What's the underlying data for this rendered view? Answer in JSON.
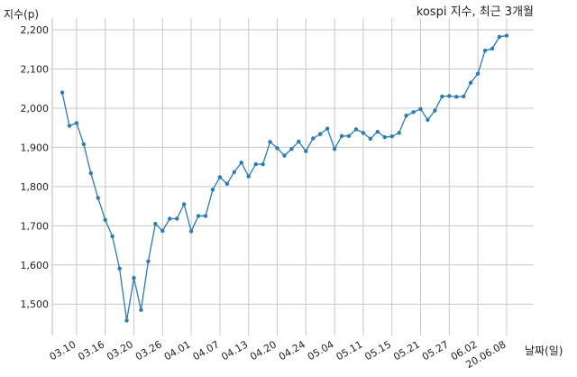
{
  "chart_data": {
    "type": "line",
    "title": "kospi 지수, 최근 3개월",
    "ylabel": "지수(p)",
    "xlabel": "날짜(일)",
    "ylim": [
      1420,
      2230
    ],
    "yticks": [
      1500,
      1600,
      1700,
      1800,
      1900,
      2000,
      2100,
      2200
    ],
    "ytick_labels": [
      "1,500",
      "1,600",
      "1,700",
      "1,800",
      "1,900",
      "2,000",
      "2,100",
      "2,200"
    ],
    "xticks": [
      {
        "index": 2,
        "label": "03.10"
      },
      {
        "index": 6,
        "label": "03.16"
      },
      {
        "index": 10,
        "label": "03.20"
      },
      {
        "index": 14,
        "label": "03.26"
      },
      {
        "index": 18,
        "label": "04.01"
      },
      {
        "index": 22,
        "label": "04.07"
      },
      {
        "index": 26,
        "label": "04.13"
      },
      {
        "index": 30,
        "label": "04.20"
      },
      {
        "index": 34,
        "label": "04.24"
      },
      {
        "index": 38,
        "label": "05.04"
      },
      {
        "index": 42,
        "label": "05.11"
      },
      {
        "index": 46,
        "label": "05.15"
      },
      {
        "index": 50,
        "label": "05.21"
      },
      {
        "index": 54,
        "label": "05.27"
      },
      {
        "index": 58,
        "label": "06.02"
      },
      {
        "index": 62,
        "label": "20.06.08"
      }
    ],
    "grid": true,
    "series": [
      {
        "color": "#2b7bb4",
        "values": [
          2040,
          1955,
          1962,
          1908,
          1834,
          1771,
          1715,
          1673,
          1591,
          1458,
          1567,
          1485,
          1609,
          1705,
          1687,
          1718,
          1718,
          1755,
          1686,
          1725,
          1725,
          1792,
          1824,
          1807,
          1837,
          1861,
          1826,
          1857,
          1857,
          1914,
          1898,
          1879,
          1896,
          1915,
          1890,
          1923,
          1934,
          1948,
          1896,
          1929,
          1929,
          1946,
          1937,
          1922,
          1940,
          1926,
          1928,
          1937,
          1981,
          1990,
          1998,
          1970,
          1994,
          2030,
          2031,
          2029,
          2030,
          2065,
          2088,
          2147,
          2152,
          2182,
          2185
        ]
      }
    ]
  }
}
